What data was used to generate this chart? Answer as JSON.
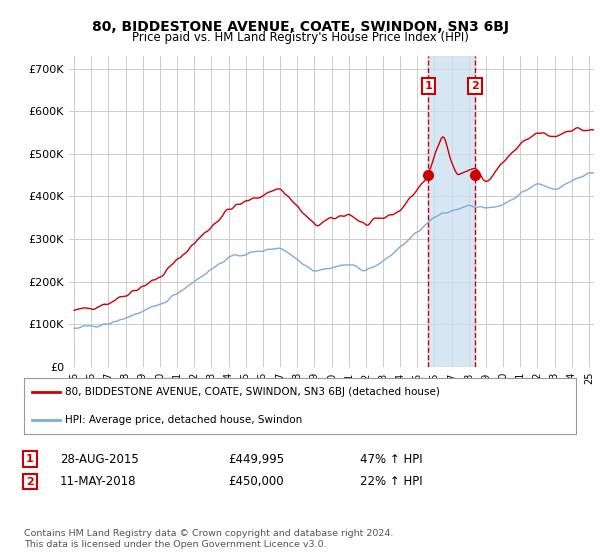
{
  "title": "80, BIDDESTONE AVENUE, COATE, SWINDON, SN3 6BJ",
  "subtitle": "Price paid vs. HM Land Registry's House Price Index (HPI)",
  "ylabel_ticks": [
    "£0",
    "£100K",
    "£200K",
    "£300K",
    "£400K",
    "£500K",
    "£600K",
    "£700K"
  ],
  "ytick_values": [
    0,
    100000,
    200000,
    300000,
    400000,
    500000,
    600000,
    700000
  ],
  "ylim": [
    0,
    730000
  ],
  "x_start_year": 1995,
  "x_end_year": 2025,
  "sale1_date": "28-AUG-2015",
  "sale1_price": 449995,
  "sale1_hpi": "47% ↑ HPI",
  "sale1_x": 2015.65,
  "sale2_date": "11-MAY-2018",
  "sale2_price": 450000,
  "sale2_hpi": "22% ↑ HPI",
  "sale2_x": 2018.36,
  "legend_line1": "80, BIDDESTONE AVENUE, COATE, SWINDON, SN3 6BJ (detached house)",
  "legend_line2": "HPI: Average price, detached house, Swindon",
  "footer": "Contains HM Land Registry data © Crown copyright and database right 2024.\nThis data is licensed under the Open Government Licence v3.0.",
  "red_color": "#cc0000",
  "blue_color": "#7aaddb",
  "highlight_color": "#cce0f0",
  "vline_color": "#cc0000",
  "background_color": "#ffffff",
  "grid_color": "#cccccc"
}
